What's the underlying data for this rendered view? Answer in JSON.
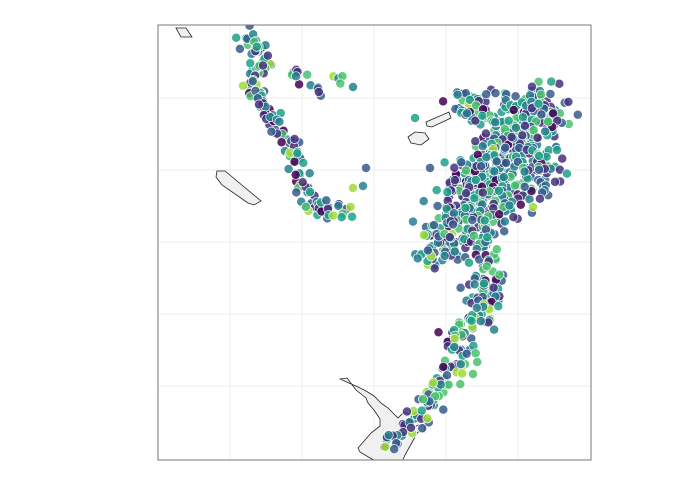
{
  "map": {
    "style": {
      "background": "#ffffff",
      "frame_color": "#777777",
      "grid_color": "#eeeeee",
      "land_fill": "#f0f0f0",
      "land_stroke": "#222222",
      "marker_stroke": "#ffffff"
    },
    "color_scale": {
      "name": "viridis",
      "stops": [
        "#440154",
        "#46327e",
        "#365c8d",
        "#277f8e",
        "#1fa187",
        "#4ac16d",
        "#a0da39"
      ]
    },
    "gridlines_shown": true,
    "axis_labels_shown": false,
    "legend_shown": false,
    "point_opacity": 0.85
  }
}
